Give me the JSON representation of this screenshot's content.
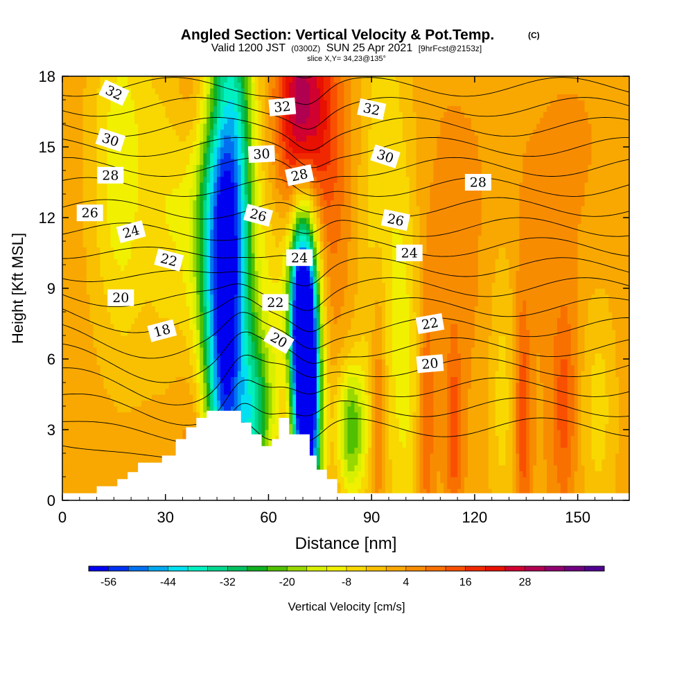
{
  "chart_data": {
    "type": "heatmap",
    "title": "Angled Section: Vertical Velocity & Pot.Temp.",
    "title_units": "(C)",
    "subtitle_parts": [
      "Valid 1200 JST",
      "(0300Z)",
      "SUN 25 Apr 2021",
      "[9hrFcst@2153z]"
    ],
    "slice_text": "slice X,Y= 34,23@135°",
    "xlabel": "Distance [nm]",
    "ylabel": "Height [Kft MSL]",
    "xlim": [
      0,
      165
    ],
    "ylim": [
      0,
      18
    ],
    "x_ticks": [
      "0",
      "30",
      "60",
      "90",
      "120",
      "150"
    ],
    "y_ticks": [
      "0",
      "3",
      "6",
      "9",
      "12",
      "15",
      "18"
    ],
    "colorbar": {
      "label": "Vertical Velocity [cm/s]",
      "min": -60,
      "step": 4,
      "tick_labels": [
        "-56",
        "-44",
        "-32",
        "-20",
        "-8",
        "4",
        "16",
        "28"
      ],
      "colors": [
        "#0000f0",
        "#0030f0",
        "#0070f0",
        "#00a8f0",
        "#00e0f0",
        "#00f0c0",
        "#00d890",
        "#00c060",
        "#10b020",
        "#50c000",
        "#98d800",
        "#d8f000",
        "#f0f000",
        "#f8d800",
        "#f8c000",
        "#f8a800",
        "#f88c00",
        "#f87000",
        "#f85000",
        "#f02800",
        "#e81000",
        "#d00030",
        "#b00050",
        "#900070",
        "#700080",
        "#500090"
      ]
    },
    "terrain_profile": {
      "x": [
        0,
        10,
        10,
        16,
        16,
        19,
        19,
        22,
        22,
        29,
        29,
        33,
        33,
        36,
        36,
        39,
        39,
        42,
        42,
        46,
        46,
        52,
        52,
        55,
        55,
        58,
        58,
        61,
        61,
        63,
        63,
        66,
        66,
        72,
        72,
        74,
        74,
        77,
        77,
        80,
        80,
        87,
        87,
        165
      ],
      "z": [
        0.3,
        0.3,
        0.6,
        0.6,
        0.9,
        0.9,
        1.2,
        1.2,
        1.6,
        1.6,
        1.9,
        1.9,
        2.6,
        2.6,
        3.1,
        3.1,
        3.5,
        3.5,
        3.8,
        3.8,
        3.8,
        3.8,
        3.3,
        3.3,
        2.8,
        2.8,
        2.3,
        2.3,
        2.6,
        2.6,
        3.5,
        3.5,
        2.8,
        2.8,
        1.9,
        1.9,
        1.3,
        1.3,
        0.9,
        0.9,
        0.3,
        0.3,
        0.3,
        0.3
      ]
    },
    "velocity_features": [
      {
        "x": 48,
        "z": 6.0,
        "sx": 4,
        "sz": 9,
        "value": -36
      },
      {
        "x": 44,
        "z": 10.5,
        "sx": 4,
        "sz": 8,
        "value": -22
      },
      {
        "x": 51,
        "z": 14.5,
        "sx": 4,
        "sz": 8,
        "value": -22
      },
      {
        "x": 71,
        "z": 4.5,
        "sx": 2.5,
        "sz": 4,
        "value": -56
      },
      {
        "x": 69,
        "z": 8.5,
        "sx": 2.5,
        "sz": 3,
        "value": -36
      },
      {
        "x": 72,
        "z": 6.0,
        "sx": 3,
        "sz": 6,
        "value": -24
      },
      {
        "x": 84,
        "z": 3.0,
        "sx": 3,
        "sz": 2,
        "value": -22
      },
      {
        "x": 56,
        "z": 3.5,
        "sx": 3,
        "sz": 2.5,
        "value": -22
      },
      {
        "x": 32,
        "z": 12.5,
        "sx": 10,
        "sz": 5,
        "value": -8
      },
      {
        "x": 16,
        "z": 14.5,
        "sx": 6,
        "sz": 6,
        "value": -8
      },
      {
        "x": 62,
        "z": 7.0,
        "sx": 5,
        "sz": 6,
        "value": -10
      },
      {
        "x": 93,
        "z": 12.0,
        "sx": 6,
        "sz": 9,
        "value": -8
      },
      {
        "x": 100,
        "z": 5.0,
        "sx": 3,
        "sz": 6,
        "value": -6
      },
      {
        "x": 128,
        "z": 4.5,
        "sx": 3,
        "sz": 5,
        "value": -6
      },
      {
        "x": 156,
        "z": 4.0,
        "sx": 4,
        "sz": 4,
        "value": -6
      },
      {
        "x": 70,
        "z": 16.5,
        "sx": 5,
        "sz": 3,
        "value": 28
      },
      {
        "x": 73,
        "z": 14.0,
        "sx": 8,
        "sz": 5,
        "value": 14
      },
      {
        "x": 42,
        "z": 17.0,
        "sx": 6,
        "sz": 2,
        "value": 14
      },
      {
        "x": 40,
        "z": 3.0,
        "sx": 4,
        "sz": 2.5,
        "value": 12
      },
      {
        "x": 24,
        "z": 12.0,
        "sx": 3,
        "sz": 3,
        "value": 6
      },
      {
        "x": 92,
        "z": 4.5,
        "sx": 1.5,
        "sz": 4,
        "value": 14
      },
      {
        "x": 106,
        "z": 3.5,
        "sx": 1.5,
        "sz": 4,
        "value": 12
      },
      {
        "x": 114,
        "z": 3.0,
        "sx": 1.5,
        "sz": 3,
        "value": 14
      },
      {
        "x": 134,
        "z": 3.5,
        "sx": 1.5,
        "sz": 3.5,
        "value": 16
      },
      {
        "x": 146,
        "z": 4.0,
        "sx": 2.5,
        "sz": 3,
        "value": 14
      },
      {
        "x": 65,
        "z": 3.5,
        "sx": 1.5,
        "sz": 2,
        "value": 10
      },
      {
        "x": 125,
        "z": 11.0,
        "sx": 22,
        "sz": 6,
        "value": 4
      },
      {
        "x": 150,
        "z": 13.0,
        "sx": 10,
        "sz": 5,
        "value": 4
      },
      {
        "x": 110,
        "z": 10.0,
        "sx": 8,
        "sz": 6,
        "value": 4
      }
    ],
    "theta_levels": [
      16,
      17,
      18,
      19,
      20,
      21,
      22,
      23,
      24,
      25,
      26,
      27,
      28,
      29,
      30,
      31,
      32,
      33,
      34,
      35,
      36
    ],
    "contour_labels": [
      {
        "text": "32",
        "x": 15,
        "z": 17.3,
        "angle": 25
      },
      {
        "text": "32",
        "x": 64,
        "z": 16.7,
        "angle": -5
      },
      {
        "text": "32",
        "x": 90,
        "z": 16.6,
        "angle": 12
      },
      {
        "text": "30",
        "x": 14,
        "z": 15.3,
        "angle": 18
      },
      {
        "text": "30",
        "x": 58,
        "z": 14.7,
        "angle": -3
      },
      {
        "text": "30",
        "x": 94,
        "z": 14.6,
        "angle": 18
      },
      {
        "text": "28",
        "x": 14,
        "z": 13.8,
        "angle": 0
      },
      {
        "text": "28",
        "x": 69,
        "z": 13.8,
        "angle": -12
      },
      {
        "text": "28",
        "x": 121,
        "z": 13.5,
        "angle": 0
      },
      {
        "text": "26",
        "x": 8,
        "z": 12.2,
        "angle": 0
      },
      {
        "text": "26",
        "x": 57,
        "z": 12.1,
        "angle": 15
      },
      {
        "text": "26",
        "x": 97,
        "z": 11.9,
        "angle": 12
      },
      {
        "text": "24",
        "x": 20,
        "z": 11.4,
        "angle": -15
      },
      {
        "text": "24",
        "x": 69,
        "z": 10.3,
        "angle": 0
      },
      {
        "text": "24",
        "x": 101,
        "z": 10.5,
        "angle": 0
      },
      {
        "text": "22",
        "x": 31,
        "z": 10.2,
        "angle": 15
      },
      {
        "text": "22",
        "x": 62,
        "z": 8.4,
        "angle": 0
      },
      {
        "text": "22",
        "x": 107,
        "z": 7.5,
        "angle": -10
      },
      {
        "text": "20",
        "x": 17,
        "z": 8.6,
        "angle": 0
      },
      {
        "text": "20",
        "x": 63,
        "z": 6.8,
        "angle": 30
      },
      {
        "text": "20",
        "x": 107,
        "z": 5.8,
        "angle": -5
      },
      {
        "text": "18",
        "x": 29,
        "z": 7.2,
        "angle": -15
      }
    ]
  }
}
